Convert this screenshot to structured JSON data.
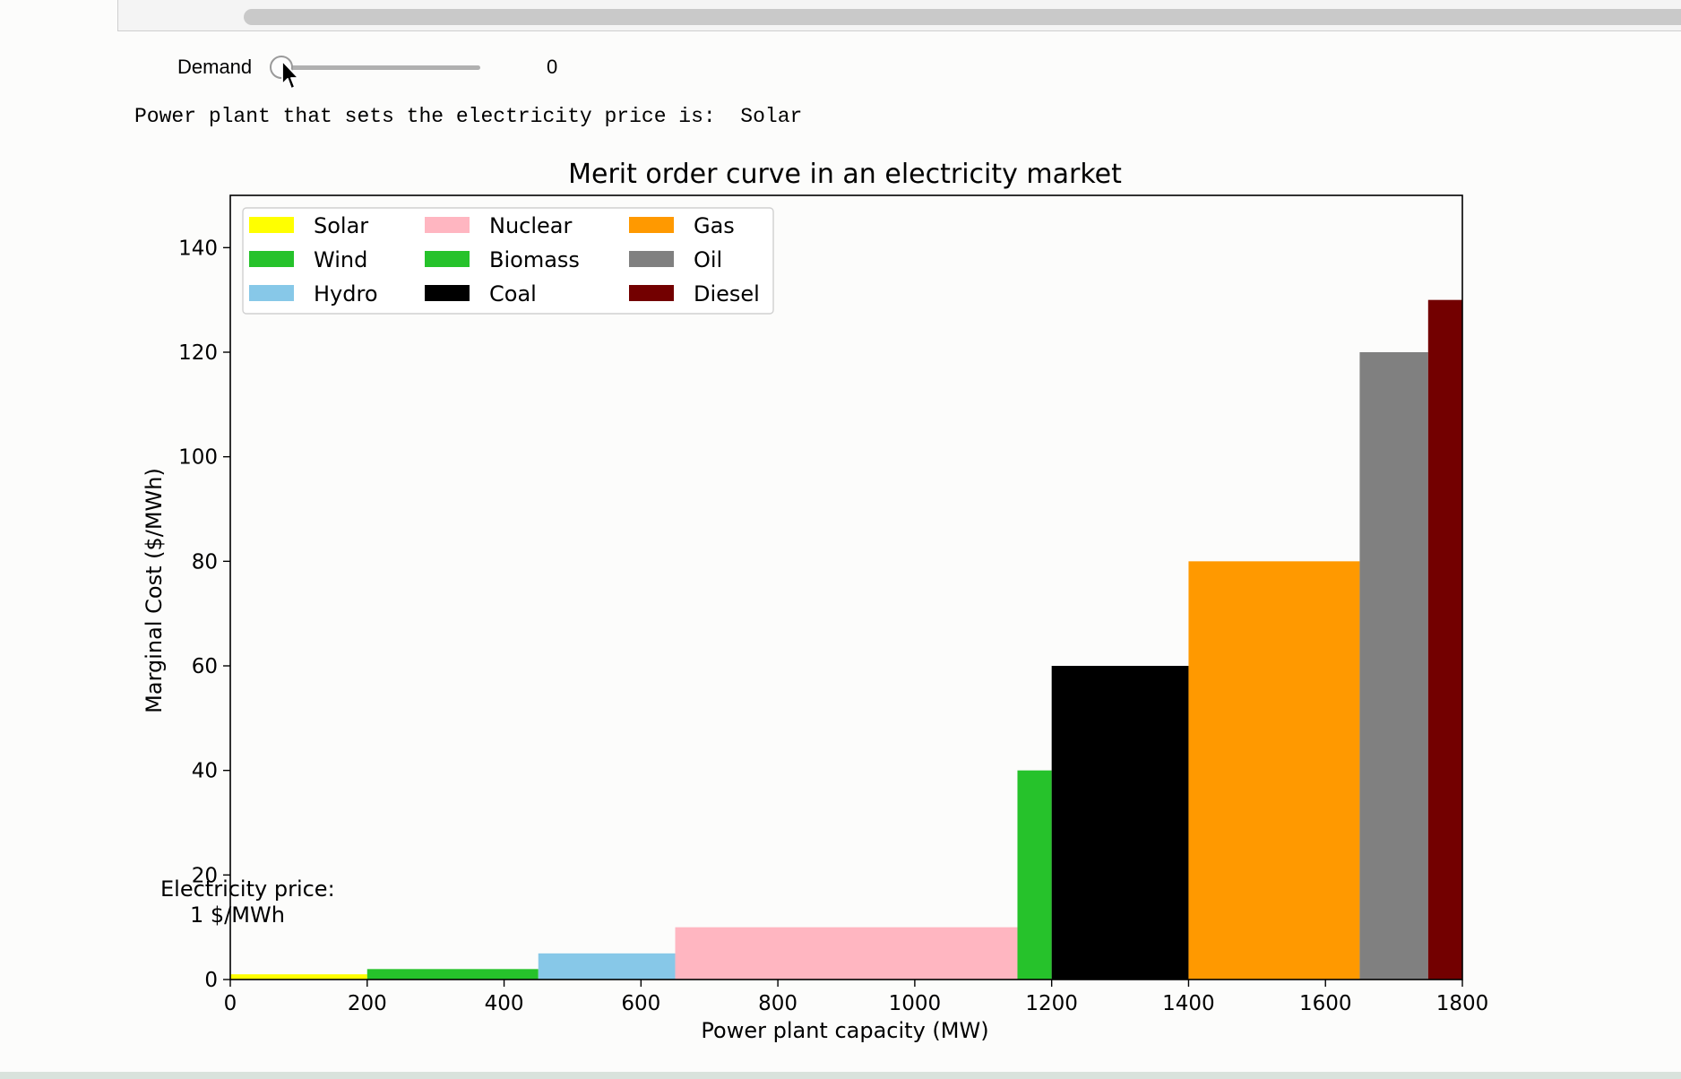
{
  "widget": {
    "demand_label": "Demand",
    "demand_value": "0",
    "demand_level": 0
  },
  "output": {
    "line": "Power plant that sets the electricity price is:  Solar"
  },
  "chart_data": {
    "type": "bar",
    "title": "Merit order curve in an electricity market",
    "xlabel": "Power plant capacity (MW)",
    "ylabel": "Marginal Cost ($/MWh)",
    "xlim": [
      0,
      1800
    ],
    "ylim": [
      0,
      150
    ],
    "xticks": [
      0,
      200,
      400,
      600,
      800,
      1000,
      1200,
      1400,
      1600,
      1800
    ],
    "yticks": [
      0,
      20,
      40,
      60,
      80,
      100,
      120,
      140
    ],
    "legend_position": "upper-left",
    "series": [
      {
        "name": "Solar",
        "capacity_start": 0,
        "capacity_end": 200,
        "marginal_cost": 1,
        "color": "#ffff00"
      },
      {
        "name": "Wind",
        "capacity_start": 200,
        "capacity_end": 450,
        "marginal_cost": 2,
        "color": "#26c22b"
      },
      {
        "name": "Hydro",
        "capacity_start": 450,
        "capacity_end": 650,
        "marginal_cost": 5,
        "color": "#87c8e8"
      },
      {
        "name": "Nuclear",
        "capacity_start": 650,
        "capacity_end": 1150,
        "marginal_cost": 10,
        "color": "#ffb6c1"
      },
      {
        "name": "Biomass",
        "capacity_start": 1150,
        "capacity_end": 1200,
        "marginal_cost": 40,
        "color": "#26c22b"
      },
      {
        "name": "Coal",
        "capacity_start": 1200,
        "capacity_end": 1400,
        "marginal_cost": 60,
        "color": "#000000"
      },
      {
        "name": "Gas",
        "capacity_start": 1400,
        "capacity_end": 1650,
        "marginal_cost": 80,
        "color": "#ff9900"
      },
      {
        "name": "Oil",
        "capacity_start": 1650,
        "capacity_end": 1750,
        "marginal_cost": 120,
        "color": "#808080"
      },
      {
        "name": "Diesel",
        "capacity_start": 1750,
        "capacity_end": 1800,
        "marginal_cost": 130,
        "color": "#730000"
      }
    ],
    "annotation": {
      "line1": "Electricity price:",
      "line2": "1 $/MWh"
    }
  }
}
